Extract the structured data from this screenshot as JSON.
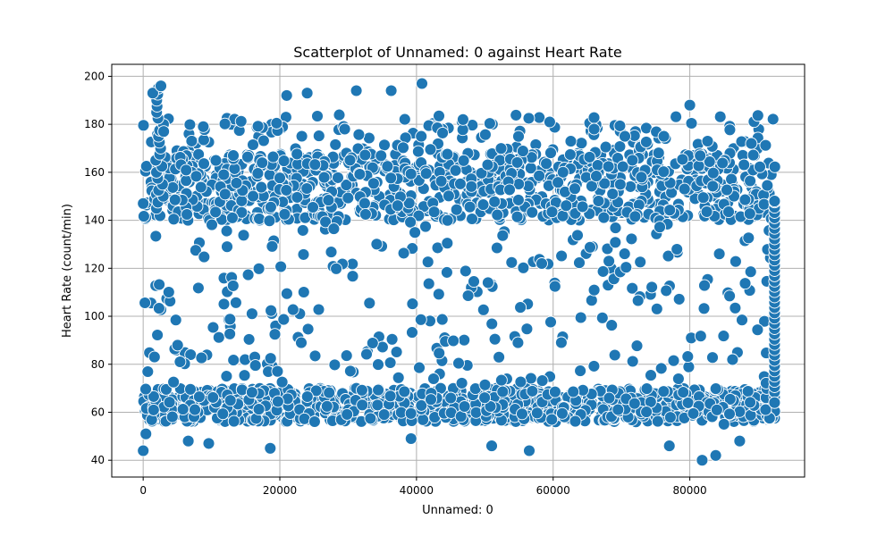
{
  "chart_data": {
    "type": "scatter",
    "title": "Scatterplot of Unnamed: 0 against Heart Rate",
    "xlabel": "Unnamed: 0",
    "ylabel": "Heart Rate (count/min)",
    "xlim": [
      -4600,
      96800
    ],
    "ylim": [
      33,
      205
    ],
    "xticks": [
      0,
      20000,
      40000,
      60000,
      80000
    ],
    "yticks": [
      40,
      60,
      80,
      100,
      120,
      140,
      160,
      180,
      200
    ],
    "grid": true,
    "legend": "none",
    "color": "#1f77b4",
    "x_max_index": 92500,
    "notable_points": [
      {
        "x": 0,
        "y": 44
      },
      {
        "x": 0,
        "y": 147
      },
      {
        "x": 400,
        "y": 51
      },
      {
        "x": 1400,
        "y": 193
      },
      {
        "x": 2600,
        "y": 196
      },
      {
        "x": 3000,
        "y": 177
      },
      {
        "x": 6600,
        "y": 48
      },
      {
        "x": 8800,
        "y": 179
      },
      {
        "x": 9600,
        "y": 47
      },
      {
        "x": 13200,
        "y": 167
      },
      {
        "x": 18600,
        "y": 45
      },
      {
        "x": 21000,
        "y": 192
      },
      {
        "x": 24000,
        "y": 193
      },
      {
        "x": 29500,
        "y": 178
      },
      {
        "x": 31200,
        "y": 194
      },
      {
        "x": 36300,
        "y": 194
      },
      {
        "x": 39200,
        "y": 49
      },
      {
        "x": 40800,
        "y": 197
      },
      {
        "x": 46800,
        "y": 182
      },
      {
        "x": 51000,
        "y": 46
      },
      {
        "x": 56500,
        "y": 44
      },
      {
        "x": 59500,
        "y": 181
      },
      {
        "x": 66000,
        "y": 178
      },
      {
        "x": 70500,
        "y": 175
      },
      {
        "x": 76200,
        "y": 175
      },
      {
        "x": 77000,
        "y": 46
      },
      {
        "x": 80000,
        "y": 188
      },
      {
        "x": 81800,
        "y": 40
      },
      {
        "x": 82600,
        "y": 173
      },
      {
        "x": 83800,
        "y": 42
      },
      {
        "x": 85000,
        "y": 55
      },
      {
        "x": 87300,
        "y": 48
      },
      {
        "x": 89000,
        "y": 172
      },
      {
        "x": 92400,
        "y": 148
      },
      {
        "x": 92400,
        "y": 64
      }
    ]
  }
}
